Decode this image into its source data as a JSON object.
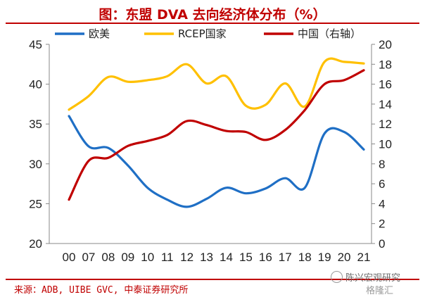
{
  "title": "图：东盟 DVA 去向经济体分布（%）",
  "source": "来源：ADB, UIBE GVC, 中泰证券研究所",
  "watermark": "陈兴宏观研究",
  "watermark2": "格隆汇",
  "chart_data": {
    "type": "line",
    "x": [
      "00",
      "07",
      "08",
      "09",
      "10",
      "11",
      "12",
      "13",
      "14",
      "15",
      "16",
      "17",
      "18",
      "19",
      "20",
      "21"
    ],
    "yleft_lim": [
      20,
      45
    ],
    "yleft_ticks": [
      20,
      25,
      30,
      35,
      40,
      45
    ],
    "yright_lim": [
      0,
      20
    ],
    "yright_ticks": [
      0,
      2,
      4,
      6,
      8,
      10,
      12,
      14,
      16,
      18,
      20
    ],
    "legend_position": "top",
    "grid": false,
    "series": [
      {
        "name": "欧美",
        "axis": "left",
        "color": "#1f6fc5",
        "values": [
          36.0,
          32.2,
          32.0,
          29.8,
          27.0,
          25.5,
          24.6,
          25.6,
          27.0,
          26.3,
          26.9,
          28.2,
          27.0,
          33.8,
          34.0,
          31.8
        ]
      },
      {
        "name": "RCEP国家",
        "axis": "left",
        "color": "#ffc000",
        "values": [
          36.8,
          38.5,
          40.9,
          40.3,
          40.5,
          41.0,
          42.5,
          40.1,
          41.0,
          37.3,
          37.4,
          40.1,
          37.2,
          42.8,
          42.8,
          42.6
        ]
      },
      {
        "name": "中国（右轴）",
        "axis": "right",
        "color": "#c00000",
        "values": [
          4.4,
          8.3,
          8.6,
          9.8,
          10.3,
          10.9,
          12.3,
          11.9,
          11.3,
          11.2,
          10.4,
          11.4,
          13.4,
          16.0,
          16.4,
          17.4
        ]
      }
    ]
  }
}
